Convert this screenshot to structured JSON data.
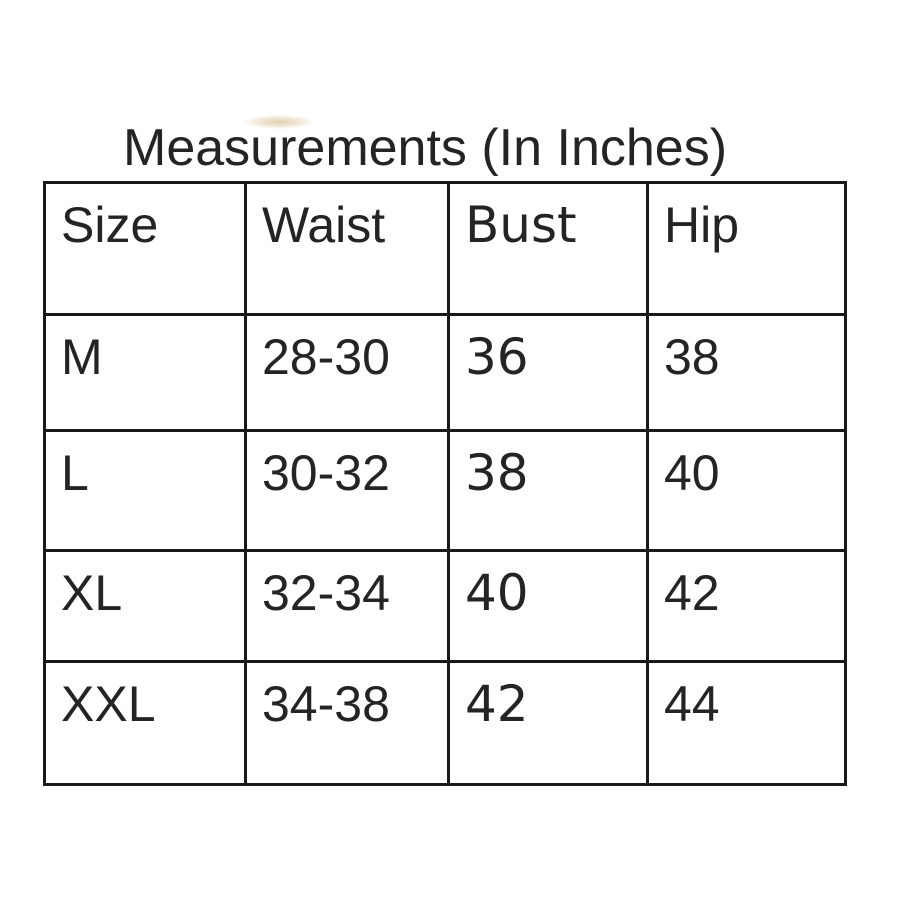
{
  "title": "Measurements (In Inches)",
  "table": {
    "headers": [
      "Size",
      "Waist",
      "Bust",
      "Hip"
    ],
    "rows": [
      [
        "M",
        "28-30",
        "36",
        "38"
      ],
      [
        "L",
        "30-32",
        "38",
        "40"
      ],
      [
        "XL",
        "32-34",
        "40",
        "42"
      ],
      [
        "XXL",
        "34-38",
        "42",
        "44"
      ]
    ]
  },
  "chart_data": {
    "type": "table",
    "title": "Measurements (In Inches)",
    "columns": [
      "Size",
      "Waist",
      "Bust",
      "Hip"
    ],
    "rows": [
      [
        "M",
        "28-30",
        "36",
        "38"
      ],
      [
        "L",
        "30-32",
        "38",
        "40"
      ],
      [
        "XL",
        "32-34",
        "40",
        "42"
      ],
      [
        "XXL",
        "34-38",
        "42",
        "44"
      ]
    ]
  },
  "colors": {
    "background": "#ffffff",
    "text": "#242424",
    "bust_text": "#000000",
    "border": "#191919",
    "smudge": "#c8a96e"
  }
}
